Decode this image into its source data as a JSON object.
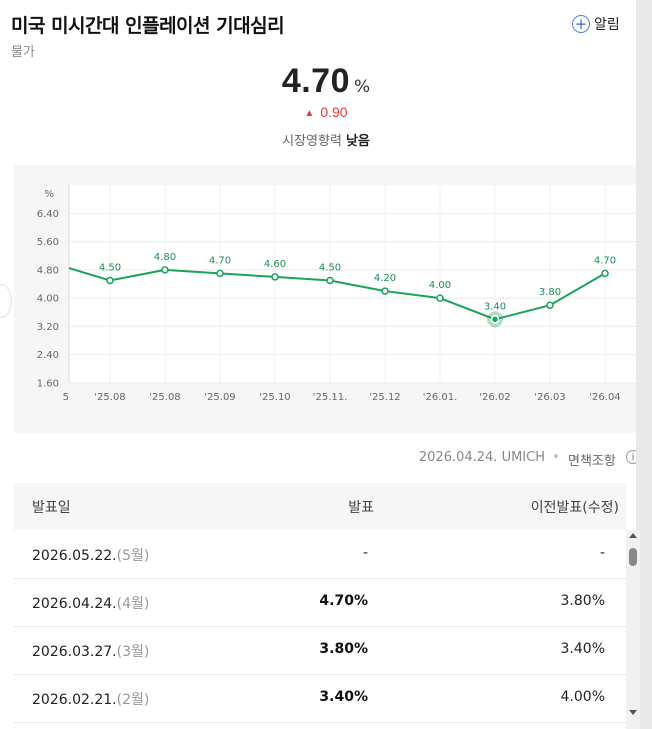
{
  "header": {
    "title": "미국 미시간대 인플레이션 기대심리",
    "subtitle": "물가",
    "alarm_label": "알림"
  },
  "summary": {
    "value": "4.70",
    "unit": "%",
    "change": "0.90",
    "impact_label": "시장영향력",
    "impact_value": "낮음"
  },
  "chart_data": {
    "type": "line",
    "ylabel_unit": "%",
    "y_ticks": [
      "6.40",
      "5.60",
      "4.80",
      "4.00",
      "3.20",
      "2.40",
      "1.60"
    ],
    "ylim": [
      1.6,
      7.2
    ],
    "categories": [
      "'25.08",
      "'25.08",
      "'25.09",
      "'25.10",
      "'25.11.",
      "'25.12",
      "'26.01.",
      "'26.02",
      "'26.03",
      "'26.04"
    ],
    "values": [
      4.5,
      4.8,
      4.7,
      4.6,
      4.5,
      4.2,
      4.0,
      3.4,
      3.8,
      4.7
    ],
    "value_labels": [
      "4.50",
      "4.80",
      "4.70",
      "4.60",
      "4.50",
      "4.20",
      "4.00",
      "3.40",
      "3.80",
      "4.70"
    ],
    "left_partial_value": 4.85,
    "highlight_index": 7,
    "line_color": "#1aa35a",
    "label_color": "#1a8f4f",
    "grid": true
  },
  "source": {
    "date": "2026.04.24. UMICH",
    "disclaimer": "면책조항",
    "info_icon": "i"
  },
  "table": {
    "headers": [
      "발표일",
      "발표",
      "이전발표(수정)"
    ],
    "rows": [
      {
        "date": "2026.05.22.",
        "month": "(5월)",
        "actual": "-",
        "previous": "-",
        "bold": false
      },
      {
        "date": "2026.04.24.",
        "month": "(4월)",
        "actual": "4.70%",
        "previous": "3.80%",
        "bold": true
      },
      {
        "date": "2026.03.27.",
        "month": "(3월)",
        "actual": "3.80%",
        "previous": "3.40%",
        "bold": true
      },
      {
        "date": "2026.02.21.",
        "month": "(2월)",
        "actual": "3.40%",
        "previous": "4.00%",
        "bold": true
      }
    ]
  }
}
